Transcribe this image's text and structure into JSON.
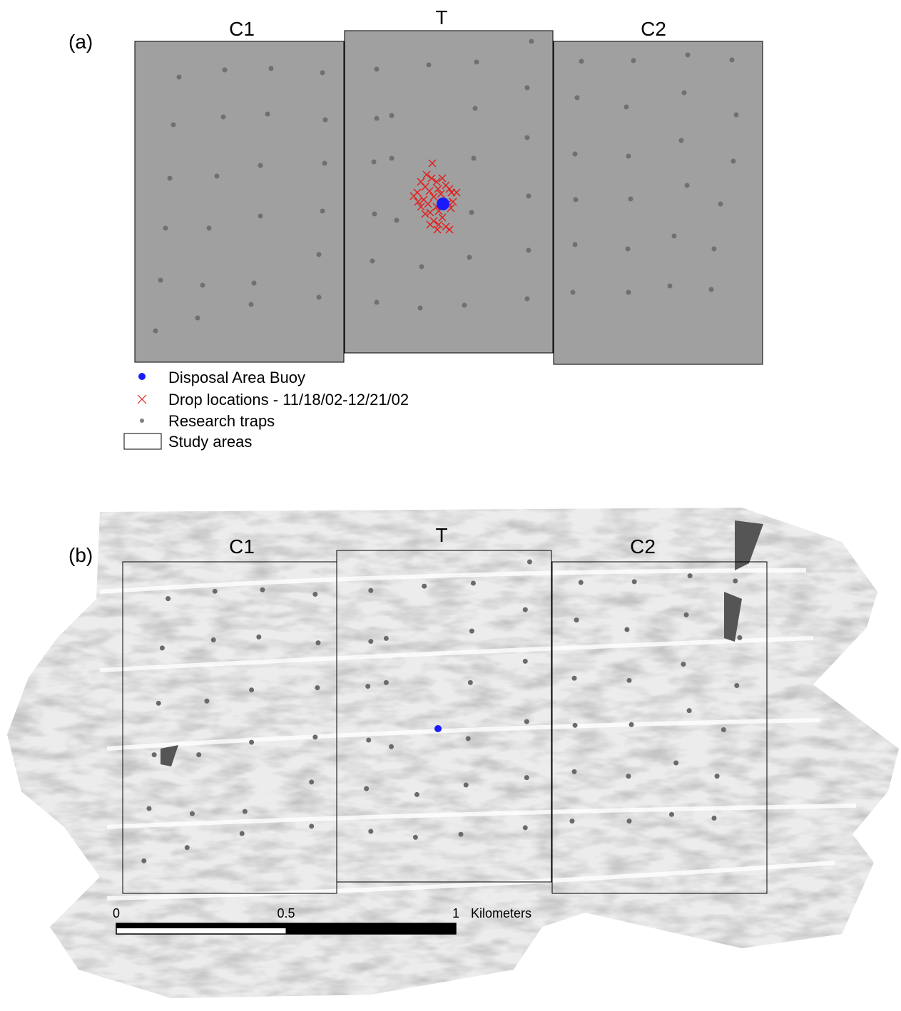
{
  "panel_a": {
    "label": "(a)",
    "areas": [
      "C1",
      "T",
      "C2"
    ]
  },
  "legend": [
    "Disposal Area Buoy",
    "Drop locations - 11/18/02-12/21/02",
    "Research traps",
    "Study areas"
  ],
  "panel_b": {
    "label": "(b)",
    "areas": [
      "C1",
      "T",
      "C2"
    ]
  },
  "scale_bar": {
    "ticks": [
      0,
      0.5,
      1
    ],
    "unit": "Kilometers"
  }
}
